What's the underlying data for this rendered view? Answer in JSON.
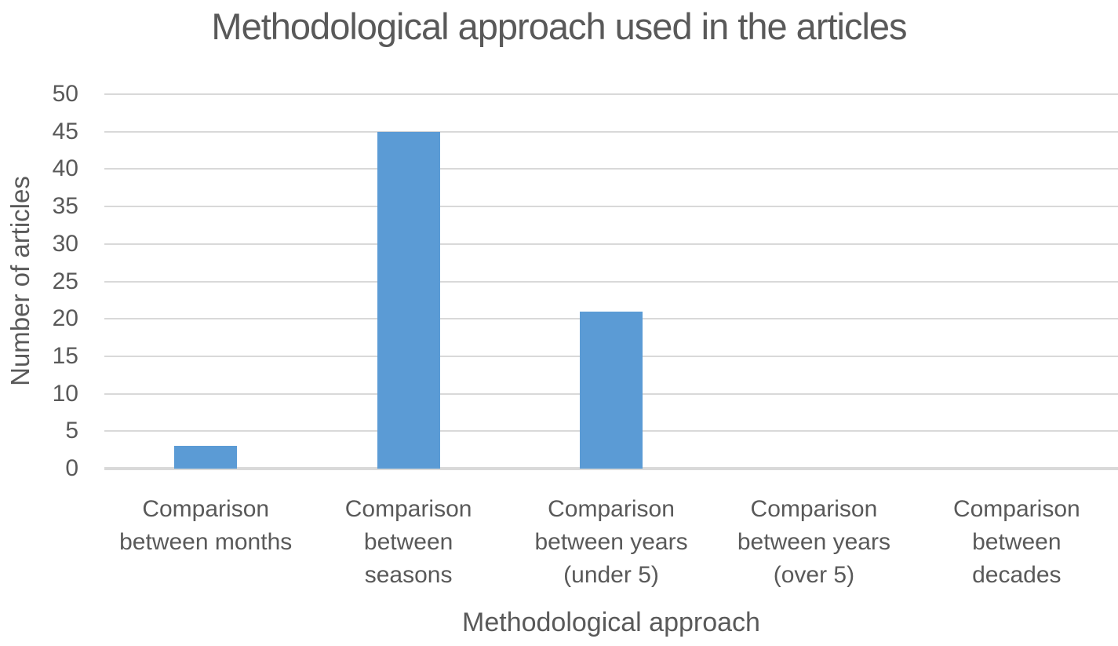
{
  "chart_data": {
    "type": "bar",
    "title": "Methodological approach used in the articles",
    "xlabel": "Methodological approach",
    "ylabel": "Number of articles",
    "categories": [
      "Comparison between months",
      "Comparison between seasons",
      "Comparison between years (under 5)",
      "Comparison between years (over 5)",
      "Comparison between decades"
    ],
    "values": [
      3,
      45,
      21,
      0,
      0
    ],
    "ylim": [
      0,
      50
    ],
    "yticks": [
      0,
      5,
      10,
      15,
      20,
      25,
      30,
      35,
      40,
      45,
      50
    ],
    "grid": "horizontal",
    "legend_position": "none",
    "bar_color": "#5b9bd5",
    "gridline_color": "#d9d9d9",
    "text_color": "#595959"
  }
}
